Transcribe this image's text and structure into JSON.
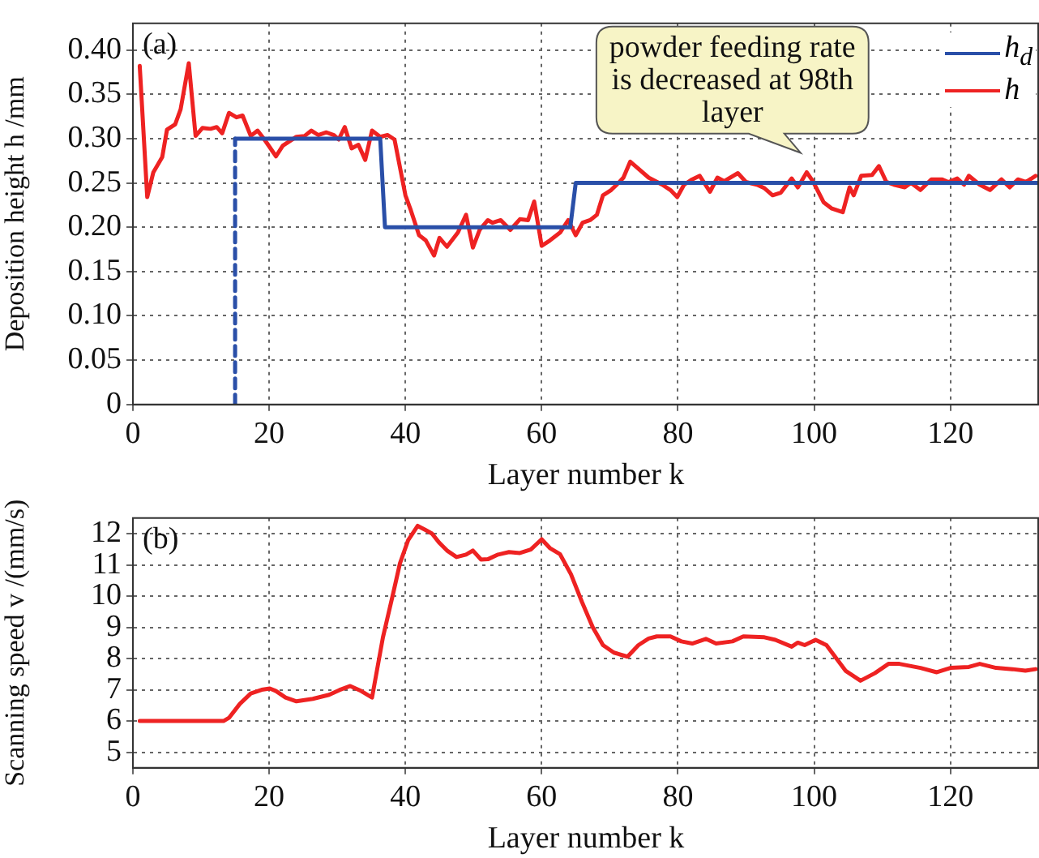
{
  "chart_data": [
    {
      "type": "line",
      "ylabel": "Deposition height h /mm",
      "xlabel": "Layer number k",
      "xlim": [
        0,
        133
      ],
      "xticks": [
        0,
        20,
        40,
        60,
        80,
        100,
        120
      ],
      "ylim": [
        0,
        0.43
      ],
      "yticks": [
        {
          "value": 0,
          "label": "0"
        },
        0.05,
        {
          "value": 0.1,
          "label": "0.10"
        },
        0.15,
        {
          "value": 0.2,
          "label": "0.20"
        },
        0.25,
        {
          "value": 0.3,
          "label": "0.30"
        },
        0.35,
        {
          "value": 0.4,
          "label": "0.40"
        }
      ],
      "grid": true,
      "legend": "top right",
      "marker": "none",
      "annotations": [
        "(a)",
        {
          "text": "powder feeding rate is decreased at 98th layer",
          "x": 98,
          "y": 0.262
        }
      ],
      "series": [
        {
          "color": "#2a4fa8",
          "line_style": "dashed",
          "x": [
            15,
            15
          ],
          "values": [
            0,
            0.3
          ]
        },
        {
          "name": "h$_{d}$",
          "color": "#2a4fa8",
          "x": [
            15,
            36.3,
            37,
            64.2,
            65,
            133
          ],
          "values": [
            0.3,
            0.3,
            0.2,
            0.2,
            0.25,
            0.25
          ]
        },
        {
          "name": "h",
          "color": "#ee2222",
          "x": [
            1,
            2.1,
            3,
            4.3,
            5,
            6.2,
            7,
            8.2,
            9.2,
            10.2,
            11.4,
            12.3,
            13.1,
            14.1,
            15.2,
            16.1,
            17.3,
            18.3,
            19.3,
            21,
            22,
            24,
            25.2,
            26.2,
            27.2,
            28.4,
            29.5,
            30.2,
            31.1,
            32.1,
            33.1,
            34.1,
            35.1,
            36.3,
            37.4,
            38.4,
            40,
            40.8,
            42,
            43,
            44.2,
            45,
            46.1,
            47.7,
            48.9,
            49.9,
            50.9,
            52.1,
            52.8,
            54,
            55.4,
            56.8,
            58,
            58.9,
            60,
            61.2,
            62.7,
            63.9,
            65,
            66,
            67.1,
            68.1,
            69,
            70.2,
            71.4,
            72,
            73,
            73.9,
            75.7,
            77.7,
            78.9,
            79.9,
            80.9,
            82.1,
            83.2,
            84.7,
            85.8,
            86.8,
            88.8,
            90,
            91.6,
            92.7,
            93.9,
            95.1,
            96.7,
            97.6,
            98.9,
            99.8,
            101.4,
            102.6,
            104.2,
            105.2,
            105.8,
            106.9,
            108.5,
            109.5,
            110.6,
            111.7,
            113.3,
            114.2,
            115.6,
            117.2,
            118.8,
            119.7,
            121,
            122,
            122.7,
            124.3,
            125.8,
            127.5,
            128.7,
            129.9,
            131.1,
            132.5
          ],
          "values": [
            0.382,
            0.234,
            0.262,
            0.279,
            0.31,
            0.316,
            0.333,
            0.385,
            0.303,
            0.312,
            0.311,
            0.313,
            0.306,
            0.329,
            0.324,
            0.326,
            0.303,
            0.309,
            0.299,
            0.28,
            0.292,
            0.302,
            0.303,
            0.309,
            0.304,
            0.307,
            0.304,
            0.299,
            0.313,
            0.289,
            0.293,
            0.276,
            0.309,
            0.302,
            0.304,
            0.299,
            0.236,
            0.219,
            0.191,
            0.185,
            0.168,
            0.188,
            0.178,
            0.194,
            0.214,
            0.177,
            0.197,
            0.208,
            0.205,
            0.208,
            0.197,
            0.209,
            0.208,
            0.229,
            0.179,
            0.185,
            0.194,
            0.208,
            0.191,
            0.205,
            0.208,
            0.214,
            0.236,
            0.242,
            0.251,
            0.256,
            0.274,
            0.268,
            0.256,
            0.248,
            0.242,
            0.234,
            0.248,
            0.254,
            0.258,
            0.24,
            0.256,
            0.252,
            0.261,
            0.251,
            0.248,
            0.244,
            0.236,
            0.239,
            0.255,
            0.245,
            0.262,
            0.252,
            0.228,
            0.221,
            0.217,
            0.245,
            0.236,
            0.258,
            0.259,
            0.269,
            0.251,
            0.248,
            0.245,
            0.25,
            0.242,
            0.254,
            0.254,
            0.251,
            0.255,
            0.248,
            0.258,
            0.248,
            0.242,
            0.254,
            0.245,
            0.254,
            0.251,
            0.258
          ]
        }
      ]
    },
    {
      "type": "line",
      "ylabel": "Scanning speed v /(mm/s)",
      "xlabel": "Layer number k",
      "xlim": [
        0,
        133
      ],
      "xticks": [
        0,
        20,
        40,
        60,
        80,
        100,
        120
      ],
      "ylim": [
        4.5,
        12.5
      ],
      "yticks": [
        5,
        6,
        7,
        8,
        9,
        10,
        11,
        12
      ],
      "grid": true,
      "marker": "none",
      "annotations": [
        "(b)"
      ],
      "series": [
        {
          "color": "#ee2222",
          "x": [
            1,
            13.3,
            14.1,
            15.7,
            17.3,
            18.9,
            20.1,
            21,
            22.4,
            24,
            26.4,
            28.8,
            30.3,
            31.9,
            33.5,
            35.1,
            36.7,
            38.1,
            39.2,
            40.4,
            41.8,
            43,
            43.9,
            45,
            46.1,
            47.5,
            48.9,
            49.9,
            51.1,
            52.1,
            53.6,
            55.2,
            56.8,
            58.4,
            60,
            61.2,
            62.7,
            64.3,
            65.9,
            67.5,
            69,
            70.6,
            72.6,
            74.2,
            75.7,
            76.9,
            78.9,
            80.5,
            82.1,
            84.1,
            85.6,
            88,
            89.6,
            92.7,
            94.3,
            96.7,
            97.6,
            98.6,
            100.2,
            101.8,
            104.6,
            106.8,
            108.9,
            110.9,
            112.5,
            115.6,
            118,
            120,
            122.7,
            124.3,
            126.7,
            129.1,
            131,
            132.5
          ],
          "values": [
            6,
            6,
            6.1,
            6.55,
            6.88,
            7,
            7.04,
            6.96,
            6.75,
            6.63,
            6.71,
            6.84,
            6.99,
            7.12,
            6.96,
            6.75,
            8.68,
            9.99,
            11.05,
            11.79,
            12.25,
            12.11,
            12,
            11.7,
            11.46,
            11.25,
            11.33,
            11.46,
            11.17,
            11.18,
            11.33,
            11.41,
            11.38,
            11.49,
            11.82,
            11.54,
            11.34,
            10.7,
            9.82,
            9,
            8.43,
            8.19,
            8.06,
            8.43,
            8.64,
            8.71,
            8.71,
            8.55,
            8.48,
            8.63,
            8.48,
            8.55,
            8.71,
            8.68,
            8.6,
            8.38,
            8.51,
            8.43,
            8.6,
            8.43,
            7.61,
            7.29,
            7.53,
            7.83,
            7.83,
            7.7,
            7.56,
            7.7,
            7.73,
            7.83,
            7.7,
            7.66,
            7.61,
            7.66
          ]
        }
      ]
    }
  ]
}
